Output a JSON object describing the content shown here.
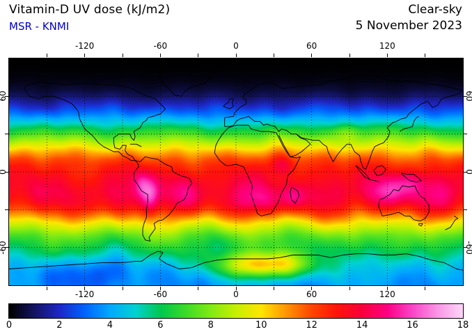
{
  "header": {
    "title": "Vitamin-D UV dose (kJ/m2)",
    "source": "MSR - KNMI",
    "source_color": "#0000cc",
    "condition": "Clear-sky",
    "date": "5 November 2023"
  },
  "chart_data": {
    "type": "heatmap",
    "title": "Vitamin-D UV dose (kJ/m2)",
    "dataset": "MSR - KNMI",
    "condition": "Clear-sky",
    "date": "5 November 2023",
    "projection": "equirectangular",
    "x_axis": {
      "range": [
        -180,
        180
      ],
      "tick_step_deg": 30,
      "label_values": [
        -120,
        -60,
        0,
        60,
        120
      ],
      "tick_labels": [
        "-120",
        "-60",
        "0",
        "60",
        "120"
      ]
    },
    "y_axis": {
      "range": [
        -90,
        90
      ],
      "tick_step_deg": 30,
      "label_values": [
        60,
        0,
        -60
      ],
      "tick_labels": [
        "60",
        "0",
        "-60"
      ]
    },
    "grid": {
      "visible": true,
      "style": "dotted",
      "step_deg": 30
    },
    "colorbar": {
      "min": 0,
      "max": 18,
      "units": "kJ/m2",
      "tick_values": [
        0,
        2,
        4,
        6,
        8,
        10,
        12,
        14,
        16,
        18
      ],
      "tick_labels": [
        "0",
        "2",
        "4",
        "6",
        "8",
        "10",
        "12",
        "14",
        "16",
        "18"
      ],
      "stops": [
        {
          "v": 0,
          "color": "#000000"
        },
        {
          "v": 1,
          "color": "#141464"
        },
        {
          "v": 2,
          "color": "#1e28c8"
        },
        {
          "v": 3,
          "color": "#0064ff"
        },
        {
          "v": 4,
          "color": "#00aaff"
        },
        {
          "v": 5,
          "color": "#00d2d2"
        },
        {
          "v": 6,
          "color": "#00c850"
        },
        {
          "v": 7,
          "color": "#3cdc28"
        },
        {
          "v": 8,
          "color": "#82eb14"
        },
        {
          "v": 9,
          "color": "#c8f000"
        },
        {
          "v": 10,
          "color": "#ffe600"
        },
        {
          "v": 11,
          "color": "#ff9600"
        },
        {
          "v": 12,
          "color": "#ff4600"
        },
        {
          "v": 13,
          "color": "#ff140a"
        },
        {
          "v": 14,
          "color": "#fa003c"
        },
        {
          "v": 15,
          "color": "#ff0082"
        },
        {
          "v": 16,
          "color": "#fa46c8"
        },
        {
          "v": 17,
          "color": "#fa96e6"
        },
        {
          "v": 18,
          "color": "#fcd7f8"
        }
      ]
    },
    "zonal_profile_kj_m2": [
      [
        90,
        0.0
      ],
      [
        80,
        0.05
      ],
      [
        72,
        0.2
      ],
      [
        65,
        0.55
      ],
      [
        60,
        1.0
      ],
      [
        55,
        1.7
      ],
      [
        50,
        2.5
      ],
      [
        45,
        3.5
      ],
      [
        40,
        4.7
      ],
      [
        35,
        5.9
      ],
      [
        30,
        7.1
      ],
      [
        25,
        8.4
      ],
      [
        20,
        9.7
      ],
      [
        15,
        10.9
      ],
      [
        10,
        11.9
      ],
      [
        5,
        12.6
      ],
      [
        0,
        13.0
      ],
      [
        -5,
        13.4
      ],
      [
        -10,
        13.7
      ],
      [
        -15,
        13.9
      ],
      [
        -20,
        13.8
      ],
      [
        -25,
        13.4
      ],
      [
        -30,
        12.5
      ],
      [
        -35,
        11.3
      ],
      [
        -40,
        10.0
      ],
      [
        -45,
        8.8
      ],
      [
        -50,
        7.7
      ],
      [
        -55,
        6.9
      ],
      [
        -60,
        6.3
      ],
      [
        -65,
        5.8
      ],
      [
        -70,
        5.2
      ],
      [
        -75,
        4.7
      ],
      [
        -80,
        4.3
      ],
      [
        -85,
        4.0
      ],
      [
        -90,
        3.8
      ]
    ],
    "regional_features": [
      {
        "name": "andes-altiplano",
        "lon": -68,
        "lat": -19,
        "amp": 2.6,
        "sigma_lon": 5,
        "sigma_lat": 11
      },
      {
        "name": "peru-coast",
        "lon": -75,
        "lat": -9,
        "amp": 1.3,
        "sigma_lon": 4,
        "sigma_lat": 7
      },
      {
        "name": "south-america-interior",
        "lon": -58,
        "lat": -16,
        "amp": 0.7,
        "sigma_lon": 16,
        "sigma_lat": 10
      },
      {
        "name": "southern-africa",
        "lon": 22,
        "lat": -24,
        "amp": 1.6,
        "sigma_lon": 13,
        "sigma_lat": 8
      },
      {
        "name": "east-africa",
        "lon": 37,
        "lat": 6,
        "amp": 1.5,
        "sigma_lon": 7,
        "sigma_lat": 6
      },
      {
        "name": "madagascar",
        "lon": 46,
        "lat": -20,
        "amp": 1.1,
        "sigma_lon": 7,
        "sigma_lat": 6
      },
      {
        "name": "tibet-himalaya",
        "lon": 88,
        "lat": 31,
        "amp": 1.4,
        "sigma_lon": 10,
        "sigma_lat": 5
      },
      {
        "name": "indonesia-new-guinea",
        "lon": 138,
        "lat": -7,
        "amp": 1.2,
        "sigma_lon": 12,
        "sigma_lat": 6
      },
      {
        "name": "north-australia",
        "lon": 127,
        "lat": -16,
        "amp": 1.6,
        "sigma_lon": 18,
        "sigma_lat": 8
      },
      {
        "name": "east-antarctica-plateau",
        "lon": 22,
        "lat": -74,
        "amp": 5.8,
        "sigma_lon": 26,
        "sigma_lat": 7
      },
      {
        "name": "west-antarctica-low",
        "lon": -115,
        "lat": -79,
        "amp": -1.4,
        "sigma_lon": 35,
        "sigma_lat": 9
      }
    ]
  }
}
